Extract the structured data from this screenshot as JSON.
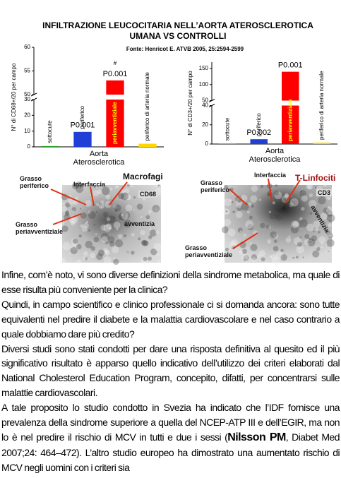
{
  "header": {
    "title_lines": [
      "INFILTRAZIONE LEUCOCITARIA NELL’AORTA  ATEROSCLEROTICA",
      "UMANA VS CONTROLLI"
    ],
    "source": "Fonte: Henricot E. ATVB 2005, 25:2594-2599"
  },
  "chart_data": [
    {
      "type": "bar",
      "y_label": "N° di CD68+/20 per campo",
      "categories": [
        "sottocute",
        "periferico",
        "periavventiziale",
        "periferico di arteria normale"
      ],
      "values": [
        0.5,
        9.5,
        53,
        2
      ],
      "colors": [
        "#2e9e2e",
        "#1f3fd6",
        "#ff0000",
        "#ffd700"
      ],
      "ylim": [
        0,
        60
      ],
      "yticks": [
        0,
        10,
        20,
        30,
        50,
        55,
        60
      ],
      "axis_break": [
        30,
        50
      ],
      "group_label": [
        "Aorta",
        "Aterosclerotica"
      ],
      "annotations": [
        {
          "text": "P0.001",
          "category": 1
        },
        {
          "text": "P0.001",
          "category": 2
        },
        {
          "text": "#",
          "category": 2
        }
      ]
    },
    {
      "type": "bar",
      "y_label": "N° di CD3+/20 per campo",
      "categories": [
        "sottocute",
        "periferico",
        "periavventiziale",
        "periferico di arteria normale"
      ],
      "values": [
        0.5,
        5,
        140,
        1.5
      ],
      "colors": [
        "#2e9e2e",
        "#1f3fd6",
        "#ff0000",
        "#ffd700"
      ],
      "ylim": [
        0,
        170
      ],
      "yticks": [
        0,
        20,
        40,
        50,
        100,
        150
      ],
      "axis_break": [
        40,
        50
      ],
      "group_label": [
        "Aorta",
        "Aterosclerotica"
      ],
      "annotations": [
        {
          "text": "P0.002",
          "category": 1
        },
        {
          "text": "P0.001",
          "category": 2
        }
      ]
    }
  ],
  "figures": [
    {
      "labels": [
        "Grasso periferico",
        "Interfaccia",
        "Macrofagi",
        "CD68",
        "avventizia",
        "Grasso periavventiziale"
      ]
    },
    {
      "labels": [
        "Grasso periferico",
        "Interfaccia",
        "T-Linfociti",
        "CD3",
        "avventizia",
        "Grasso periavventiziale"
      ]
    }
  ],
  "body": {
    "paragraphs": [
      {
        "parts": [
          "Infine, com’è noto, vi sono diverse definizioni della sindrome metabolica, ma quale di esse risulta più conveniente per la clinica?"
        ]
      },
      {
        "parts": [
          "Quindi, in campo scientifico e clinico professionale ci si domanda ancora: sono tutte equivalenti nel predire il diabete e la malattia cardiovascolare e nel caso contrario a quale dobbiamo dare più credito?"
        ]
      },
      {
        "parts": [
          "Diversi studi sono stati condotti per dare una risposta definitiva al quesito ed il più significativo risultato è apparso quello indicativo dell’utilizzo dei criteri elaborati dal National Cholesterol Education Program, concepito, difatti, per concentrarsi sulle malattie cardiovascolari."
        ]
      },
      {
        "parts": [
          "A tale proposito lo studio condotto in Svezia ha indicato che l’IDF fornisce una prevalenza della sindrome superiore a quella del NCEP-ATP III e dell’EGIR, ma non lo è nel predire il rischio di MCV in tutti e due i sessi (",
          "Nilsson PM",
          ", Diabet Med 2007;24: 464–472). L’altro studio europeo ha dimostrato una aumentato rischio di MCV negli uomini con i criteri sia"
        ]
      }
    ]
  }
}
